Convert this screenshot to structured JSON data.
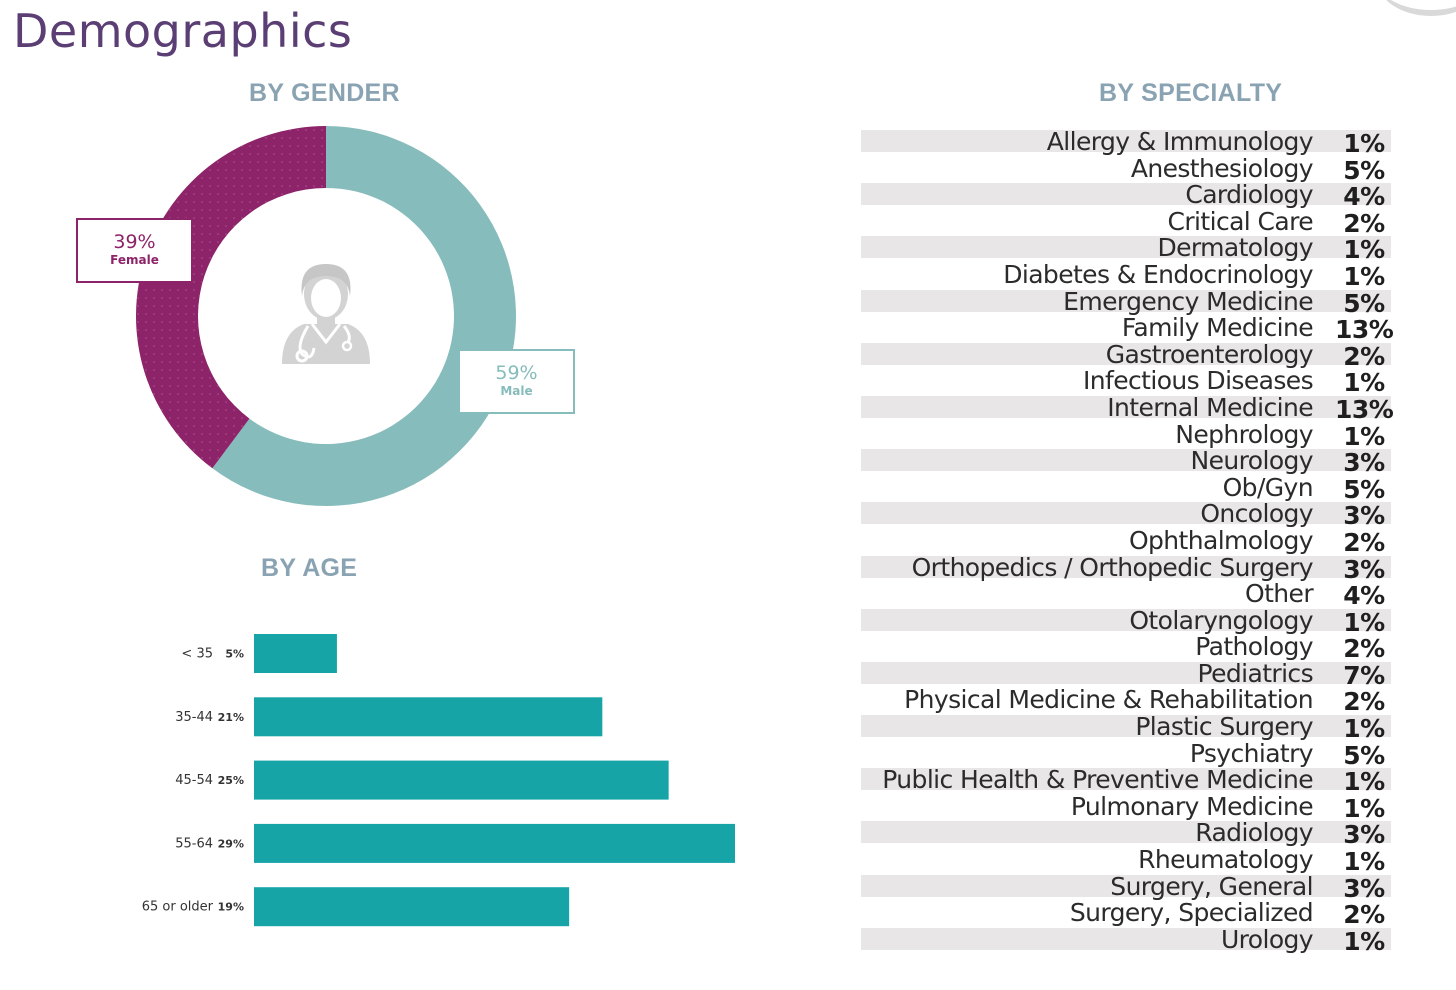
{
  "page": {
    "title": "Demographics"
  },
  "sections": {
    "gender": "BY GENDER",
    "age": "BY AGE",
    "specialty": "BY SPECIALTY"
  },
  "colors": {
    "female": "#8d2369",
    "male": "#86bcbb",
    "age_bar": "#16a4a6",
    "title": "#5a3e74",
    "section_title": "#8aa3b2",
    "stripe": "#e8e6e7"
  },
  "icons": {
    "donut_center": "doctor-icon"
  },
  "chart_data": [
    {
      "type": "pie",
      "title": "BY GENDER",
      "donut": true,
      "slices": [
        {
          "label": "Female",
          "value": 39,
          "display": "39%",
          "color": "#8d2369"
        },
        {
          "label": "Male",
          "value": 59,
          "display": "59%",
          "color": "#86bcbb"
        }
      ]
    },
    {
      "type": "bar",
      "orientation": "horizontal",
      "title": "BY AGE",
      "categories": [
        "< 35",
        "35-44",
        "45-54",
        "55-64",
        "65 or older"
      ],
      "values": [
        5,
        21,
        25,
        29,
        19
      ],
      "value_labels": [
        "5%",
        "21%",
        "25%",
        "29%",
        "19%"
      ],
      "xlim": [
        0,
        29
      ]
    },
    {
      "type": "table",
      "title": "BY SPECIALTY",
      "rows": [
        {
          "name": "Allergy & Immunology",
          "value": "1%"
        },
        {
          "name": "Anesthesiology",
          "value": "5%"
        },
        {
          "name": "Cardiology",
          "value": "4%"
        },
        {
          "name": "Critical Care",
          "value": "2%"
        },
        {
          "name": "Dermatology",
          "value": "1%"
        },
        {
          "name": "Diabetes & Endocrinology",
          "value": "1%"
        },
        {
          "name": "Emergency Medicine",
          "value": "5%"
        },
        {
          "name": "Family Medicine",
          "value": "13%"
        },
        {
          "name": "Gastroenterology",
          "value": "2%"
        },
        {
          "name": "Infectious Diseases",
          "value": "1%"
        },
        {
          "name": "Internal Medicine",
          "value": "13%"
        },
        {
          "name": "Nephrology",
          "value": "1%"
        },
        {
          "name": "Neurology",
          "value": "3%"
        },
        {
          "name": "Ob/Gyn",
          "value": "5%"
        },
        {
          "name": "Oncology",
          "value": "3%"
        },
        {
          "name": "Ophthalmology",
          "value": "2%"
        },
        {
          "name": "Orthopedics / Orthopedic Surgery",
          "value": "3%"
        },
        {
          "name": "Other",
          "value": "4%"
        },
        {
          "name": "Otolaryngology",
          "value": "1%"
        },
        {
          "name": "Pathology",
          "value": "2%"
        },
        {
          "name": "Pediatrics",
          "value": "7%"
        },
        {
          "name": "Physical Medicine & Rehabilitation",
          "value": "2%"
        },
        {
          "name": "Plastic Surgery",
          "value": "1%"
        },
        {
          "name": "Psychiatry",
          "value": "5%"
        },
        {
          "name": "Public Health & Preventive Medicine",
          "value": "1%"
        },
        {
          "name": "Pulmonary Medicine",
          "value": "1%"
        },
        {
          "name": "Radiology",
          "value": "3%"
        },
        {
          "name": "Rheumatology",
          "value": "1%"
        },
        {
          "name": "Surgery, General",
          "value": "3%"
        },
        {
          "name": "Surgery, Specialized",
          "value": "2%"
        },
        {
          "name": "Urology",
          "value": "1%"
        }
      ]
    }
  ]
}
